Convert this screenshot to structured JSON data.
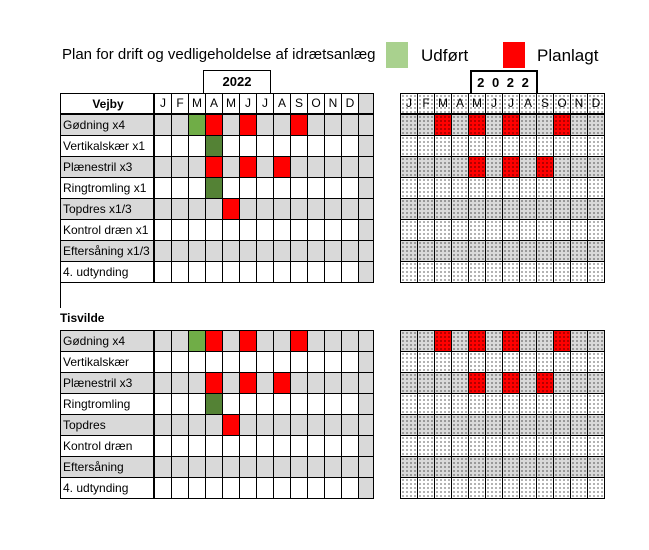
{
  "title": "Plan for drift og vedligeholdelse af idrætsanlæg",
  "legend": {
    "done_label": "Udført",
    "done_color": "#a9d18e",
    "planned_label": "Planlagt",
    "planned_color": "#ff0000"
  },
  "colors": {
    "done_dark": "#548235",
    "done_light": "#70ad47",
    "planned": "#ff0000",
    "grey": "#d9d9d9"
  },
  "year_left": "2022",
  "year_right": "2 0 2 2",
  "months": [
    "J",
    "F",
    "M",
    "A",
    "M",
    "J",
    "J",
    "A",
    "S",
    "O",
    "N",
    "D"
  ],
  "sections": [
    {
      "name": "Vejby",
      "rows": [
        {
          "label": "Gødning x4",
          "done": [
            2
          ],
          "planned": [
            3,
            5,
            8
          ]
        },
        {
          "label": "Vertikalskær x1",
          "done": [
            3
          ],
          "planned": []
        },
        {
          "label": "Plænestril x3",
          "done": [],
          "planned": [
            3,
            5,
            7
          ]
        },
        {
          "label": "Ringtromling x1",
          "done": [
            3
          ],
          "planned": []
        },
        {
          "label": "Topdres x1/3",
          "done": [],
          "planned": [
            4
          ]
        },
        {
          "label": "Kontrol dræn x1",
          "done": [],
          "planned": []
        },
        {
          "label": "Eftersåning x1/3",
          "done": [],
          "planned": []
        },
        {
          "label": "4. udtynding",
          "done": [],
          "planned": []
        }
      ]
    },
    {
      "name": "Tisvilde",
      "rows": [
        {
          "label": "Gødning x4",
          "done": [
            2
          ],
          "planned": [
            3,
            5,
            8
          ]
        },
        {
          "label": "Vertikalskær",
          "done": [],
          "planned": []
        },
        {
          "label": "Plænestril x3",
          "done": [],
          "planned": [
            3,
            5,
            7
          ]
        },
        {
          "label": "Ringtromling",
          "done": [
            3
          ],
          "planned": []
        },
        {
          "label": "Topdres",
          "done": [],
          "planned": [
            4
          ]
        },
        {
          "label": "Kontrol dræn",
          "done": [],
          "planned": []
        },
        {
          "label": "Eftersåning",
          "done": [],
          "planned": []
        },
        {
          "label": "4. udtynding",
          "done": [],
          "planned": []
        }
      ]
    }
  ],
  "right_planned": {
    "sections": [
      {
        "rows": [
          [
            2,
            4,
            6,
            9
          ],
          [],
          [
            4,
            6,
            8
          ],
          [],
          [],
          [],
          [],
          []
        ]
      },
      {
        "rows": [
          [
            2,
            4,
            6,
            9
          ],
          [],
          [
            4,
            6,
            8
          ],
          [],
          [],
          [],
          [],
          []
        ]
      }
    ]
  }
}
